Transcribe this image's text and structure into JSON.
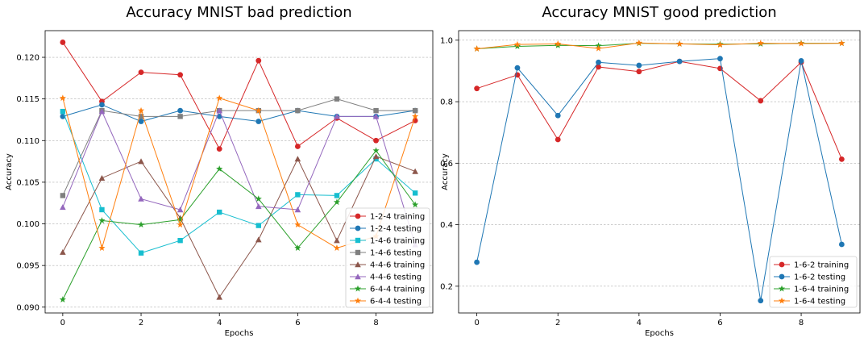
{
  "chart_data": [
    {
      "type": "line",
      "title": "Accuracy MNIST bad prediction",
      "xlabel": "Epochs",
      "ylabel": "Accuracy",
      "x": [
        0,
        1,
        2,
        3,
        4,
        5,
        6,
        7,
        8,
        9
      ],
      "xlim": [
        -0.45,
        9.45
      ],
      "ylim": [
        0.0893,
        0.1232
      ],
      "xticks": [
        0,
        2,
        4,
        6,
        8
      ],
      "yticks": [
        0.09,
        0.095,
        0.1,
        0.105,
        0.11,
        0.115,
        0.12
      ],
      "ytick_labels": [
        "0.090",
        "0.095",
        "0.100",
        "0.105",
        "0.110",
        "0.115",
        "0.120"
      ],
      "grid": "horizontal",
      "legend_position": "lower-right",
      "series": [
        {
          "name": "1-2-4 training",
          "color": "#d62728",
          "marker": "circle",
          "values": [
            0.1218,
            0.1147,
            0.1182,
            0.1179,
            0.109,
            0.1196,
            0.1093,
            0.1127,
            0.11,
            0.1124
          ]
        },
        {
          "name": "1-2-4 testing",
          "color": "#1f77b4",
          "marker": "circle",
          "values": [
            0.1129,
            0.1143,
            0.1123,
            0.1136,
            0.1129,
            0.1123,
            0.1136,
            0.1129,
            0.1129,
            0.1136
          ]
        },
        {
          "name": "1-4-6 training",
          "color": "#17becf",
          "marker": "square",
          "values": [
            0.1135,
            0.1017,
            0.0965,
            0.098,
            0.1014,
            0.0998,
            0.1035,
            0.1034,
            0.1078,
            0.1037
          ]
        },
        {
          "name": "1-4-6 testing",
          "color": "#7f7f7f",
          "marker": "square",
          "values": [
            0.1034,
            0.1136,
            0.1129,
            0.1129,
            0.1136,
            0.1136,
            0.1136,
            0.115,
            0.1136,
            0.1136
          ]
        },
        {
          "name": "4-4-6 training",
          "color": "#8c564b",
          "marker": "triangle",
          "values": [
            0.0966,
            0.1055,
            0.1075,
            0.1007,
            0.0912,
            0.0981,
            0.1078,
            0.098,
            0.1081,
            0.1063
          ]
        },
        {
          "name": "4-4-6 testing",
          "color": "#9467bd",
          "marker": "triangle",
          "values": [
            0.102,
            0.1135,
            0.103,
            0.1017,
            0.1136,
            0.1021,
            0.1017,
            0.1129,
            0.1129,
            0.0975
          ]
        },
        {
          "name": "6-4-4 training",
          "color": "#2ca02c",
          "marker": "star",
          "values": [
            0.0909,
            0.1004,
            0.0999,
            0.1005,
            0.1066,
            0.103,
            0.0971,
            0.1026,
            0.1088,
            0.1023
          ]
        },
        {
          "name": "6-4-4 testing",
          "color": "#ff7f0e",
          "marker": "star",
          "values": [
            0.1151,
            0.0971,
            0.1136,
            0.0999,
            0.1151,
            0.1136,
            0.0999,
            0.0971,
            0.0985,
            0.1129
          ]
        }
      ]
    },
    {
      "type": "line",
      "title": "Accuracy MNIST good prediction",
      "xlabel": "Epochs",
      "ylabel": "Accuracy",
      "x": [
        0,
        1,
        2,
        3,
        4,
        5,
        6,
        7,
        8,
        9
      ],
      "xlim": [
        -0.45,
        9.45
      ],
      "ylim": [
        0.113,
        1.031
      ],
      "xticks": [
        0,
        2,
        4,
        6,
        8
      ],
      "yticks": [
        0.2,
        0.4,
        0.6,
        0.8,
        1.0
      ],
      "ytick_labels": [
        "0.2",
        "0.4",
        "0.6",
        "0.8",
        "1.0"
      ],
      "grid": "horizontal",
      "legend_position": "lower-right",
      "series": [
        {
          "name": "1-6-2 training",
          "color": "#d62728",
          "marker": "circle",
          "values": [
            0.843,
            0.887,
            0.677,
            0.913,
            0.898,
            0.931,
            0.908,
            0.803,
            0.928,
            0.613
          ]
        },
        {
          "name": "1-6-2 testing",
          "color": "#1f77b4",
          "marker": "circle",
          "values": [
            0.278,
            0.91,
            0.755,
            0.928,
            0.918,
            0.931,
            0.94,
            0.153,
            0.933,
            0.336
          ]
        },
        {
          "name": "1-6-4 training",
          "color": "#2ca02c",
          "marker": "star",
          "values": [
            0.972,
            0.98,
            0.983,
            0.982,
            0.99,
            0.988,
            0.987,
            0.988,
            0.99,
            0.99
          ]
        },
        {
          "name": "1-6-4 testing",
          "color": "#ff7f0e",
          "marker": "star",
          "values": [
            0.972,
            0.986,
            0.988,
            0.973,
            0.991,
            0.988,
            0.985,
            0.99,
            0.989,
            0.99
          ]
        }
      ]
    }
  ]
}
